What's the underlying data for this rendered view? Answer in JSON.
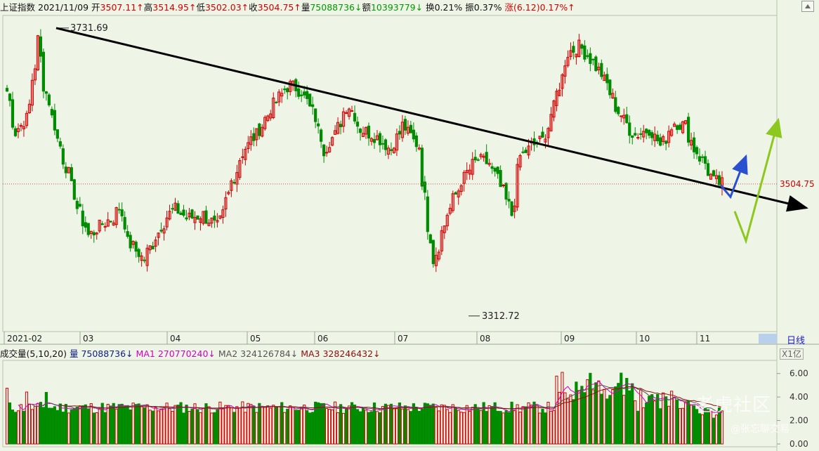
{
  "header": {
    "index_name": "上证指数",
    "date": "2021/11/09",
    "open_label": "开",
    "open_value": "3507.11",
    "open_dir": "↑",
    "high_label": "高",
    "high_value": "3514.95",
    "high_dir": "↑",
    "low_label": "低",
    "low_value": "3502.03",
    "low_dir": "↑",
    "close_label": "收",
    "close_value": "3504.75",
    "close_dir": "↑",
    "volume_label": "量",
    "volume_value": "75088736",
    "volume_dir": "↓",
    "amount_label": "额",
    "amount_value": "10393779",
    "amount_dir": "↓",
    "turnover": "换0.21%",
    "amplitude": "振0.37%",
    "change_label": "涨",
    "change_value": "(6.12)0.17%",
    "change_dir": "↑"
  },
  "volume_header": {
    "title": "成交量(5,10,20)",
    "vol_label": "量",
    "vol_value": "75088736",
    "vol_dir": "↓",
    "ma1_label": "MA1",
    "ma1_value": "270770240",
    "ma1_dir": "↓",
    "ma2_label": "MA2",
    "ma2_value": "324126784",
    "ma2_dir": "↓",
    "ma3_label": "MA3",
    "ma3_value": "328246432",
    "ma3_dir": "↓"
  },
  "period_label": "日线",
  "unit_label": "X1亿",
  "watermark": "老虎社区",
  "watermark_sub": "@张忘聊交易",
  "colors": {
    "up": "#d40000",
    "down": "#008c00",
    "bg": "#eef4e6",
    "trend": "#000000",
    "blue_arrow": "#2a4fd0",
    "green_arrow": "#8cc81e"
  },
  "chart_data": {
    "type": "candlestick",
    "title": "上证指数",
    "period": "日线",
    "ylim": [
      3290,
      3750
    ],
    "x_axis_labels": [
      "2021-02",
      "03",
      "04",
      "05",
      "06",
      "07",
      "08",
      "09",
      "10",
      "11"
    ],
    "annotations": {
      "high_point": {
        "label": "3731.69",
        "value": 3731.69
      },
      "low_point": {
        "label": "3312.72",
        "value": 3312.72
      },
      "last_price": {
        "label": "3504.75",
        "value": 3504.75
      }
    },
    "trendline": {
      "from": {
        "label": "3731.69",
        "value": 3731.69
      },
      "to_value_at_end": 3470
    },
    "projection_arrows": [
      {
        "color": "blue",
        "path_values": [
          3503,
          3486,
          3545
        ]
      },
      {
        "color": "green",
        "path_values": [
          3465,
          3422,
          3598
        ]
      }
    ],
    "last_candle": {
      "open": 3507.11,
      "high": 3514.95,
      "low": 3502.03,
      "close": 3504.75
    },
    "volume": {
      "unit": "亿",
      "y_ticks": [
        0.0,
        2.0,
        4.0,
        6.0
      ],
      "ylim": [
        0,
        7
      ],
      "last_volume": 75088736,
      "ma1": 270770240,
      "ma2": 324126784,
      "ma3": 328246432
    }
  }
}
